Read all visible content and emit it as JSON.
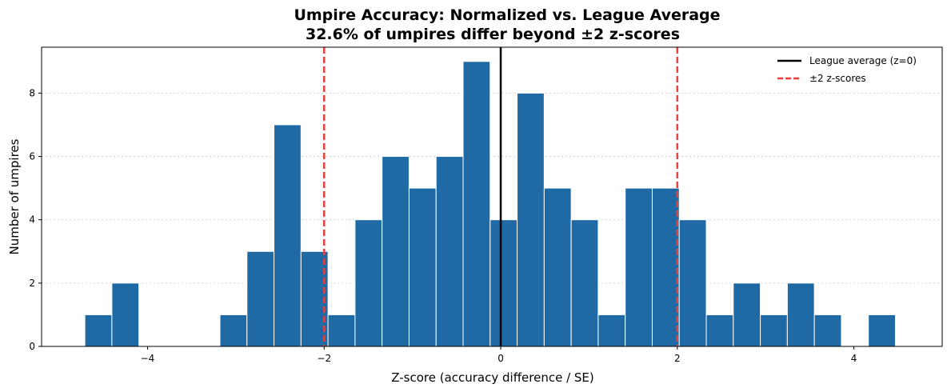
{
  "chart_data": {
    "type": "bar",
    "subtype": "histogram",
    "title": "Umpire Accuracy: Normalized vs. League Average",
    "subtitle": "32.6% of umpires differ beyond ±2 z-scores",
    "xlabel": "Z-score (accuracy difference / SE)",
    "ylabel": "Number of umpires",
    "xlim": [
      -5.2,
      5.0
    ],
    "ylim": [
      0,
      9.45
    ],
    "xticks": [
      -4,
      -2,
      0,
      2,
      4
    ],
    "xtick_labels": [
      "−4",
      "−2",
      "0",
      "2",
      "4"
    ],
    "yticks": [
      0,
      2,
      4,
      6,
      8
    ],
    "ytick_labels": [
      "0",
      "2",
      "4",
      "6",
      "8"
    ],
    "grid": "y-dotted",
    "bar_color": "#1f6aa5",
    "bin_edges": [
      -4.71,
      -4.404,
      -4.098,
      -3.792,
      -3.486,
      -3.18,
      -2.874,
      -2.568,
      -2.262,
      -1.956,
      -1.65,
      -1.344,
      -1.038,
      -0.732,
      -0.426,
      -0.12,
      0.186,
      0.492,
      0.798,
      1.104,
      1.41,
      1.716,
      2.022,
      2.328,
      2.634,
      2.94,
      3.246,
      3.552,
      3.858,
      4.164,
      4.47
    ],
    "values": [
      1,
      2,
      0,
      0,
      0,
      1,
      3,
      7,
      3,
      1,
      4,
      6,
      5,
      6,
      9,
      4,
      8,
      5,
      4,
      1,
      5,
      5,
      4,
      1,
      2,
      1,
      2,
      1,
      0,
      1
    ],
    "reference_lines": [
      {
        "x": 0,
        "name": "League average (z=0)",
        "color": "#000000",
        "style": "solid"
      },
      {
        "x": -2,
        "name": "±2 z-scores",
        "color": "#e8403c",
        "style": "dashed"
      },
      {
        "x": 2,
        "name": "±2 z-scores",
        "color": "#e8403c",
        "style": "dashed"
      }
    ],
    "legend": {
      "placement": "top-right",
      "entries": [
        {
          "label": "League average (z=0)",
          "color": "#000000",
          "style": "solid"
        },
        {
          "label": "±2 z-scores",
          "color": "#e8403c",
          "style": "dashed"
        }
      ]
    }
  }
}
